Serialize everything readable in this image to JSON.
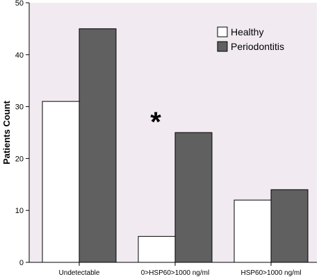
{
  "chart_data": {
    "type": "bar",
    "title": "",
    "xlabel": "",
    "ylabel": "Patients Count",
    "ylim": [
      0,
      50
    ],
    "yticks": [
      0,
      10,
      20,
      30,
      40,
      50
    ],
    "categories": [
      "Undetectable",
      "0>HSP60>1000 ng/ml",
      "HSP60>1000 ng/ml"
    ],
    "series": [
      {
        "name": "Healthy",
        "values": [
          31,
          5,
          12
        ],
        "color": "#ffffff"
      },
      {
        "name": "Periodontitis",
        "values": [
          45,
          25,
          14
        ],
        "color": "#606060"
      }
    ],
    "legend_position": "top-right",
    "plot_background": "#f1ebf1",
    "grid": false,
    "annotations": [
      {
        "text": "*",
        "category_index": 1
      }
    ]
  }
}
